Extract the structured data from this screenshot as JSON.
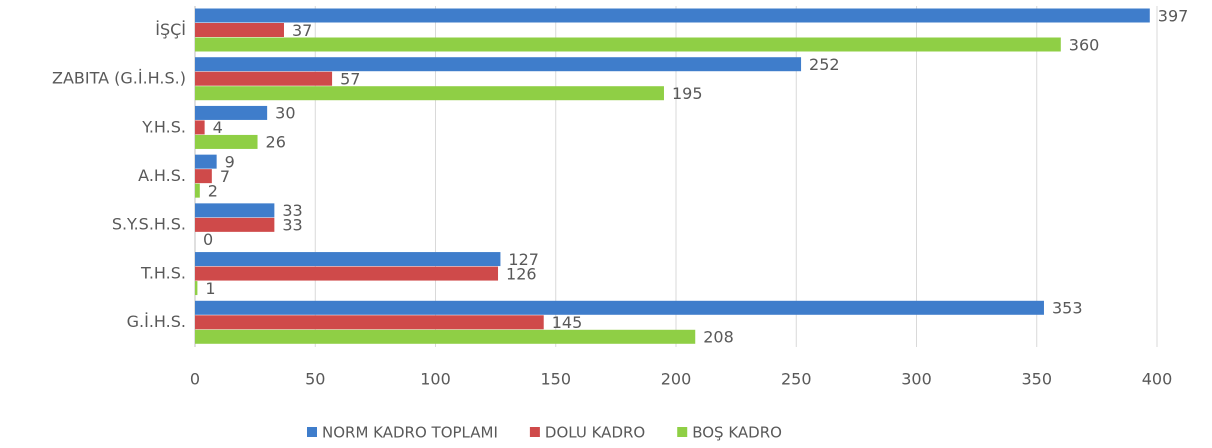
{
  "chart_data": {
    "type": "hbar",
    "categories": [
      "İŞÇİ",
      "ZABITA (G.İ.H.S.)",
      "Y.H.S.",
      "A.H.S.",
      "S.Y.S.H.S.",
      "T.H.S.",
      "G.İ.H.S."
    ],
    "series": [
      {
        "name": "NORM KADRO TOPLAMI",
        "color": "#3f7dcb",
        "values": [
          397,
          252,
          30,
          9,
          33,
          127,
          353
        ]
      },
      {
        "name": "DOLU KADRO",
        "color": "#cf4a4a",
        "values": [
          37,
          57,
          4,
          7,
          33,
          126,
          145
        ]
      },
      {
        "name": "BOŞ KADRO",
        "color": "#8fcf45",
        "values": [
          360,
          195,
          26,
          2,
          0,
          1,
          208
        ]
      }
    ],
    "xlim": [
      0,
      400
    ],
    "xticks": [
      0,
      50,
      100,
      150,
      200,
      250,
      300,
      350,
      400
    ],
    "grid": true,
    "legend": "bottom"
  }
}
